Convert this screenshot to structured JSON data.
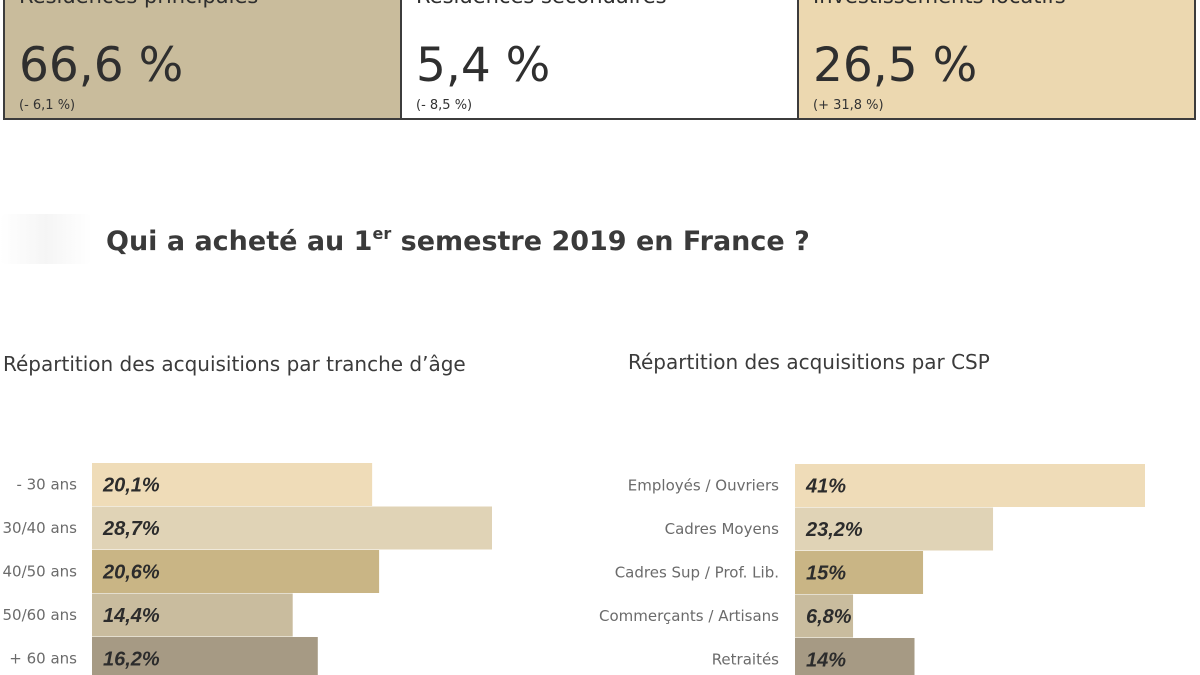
{
  "stats": [
    {
      "title": "Résidences principales",
      "value": "66,6 %",
      "change": "(- 6,1 %)",
      "color": "#c9bc9c"
    },
    {
      "title": "Résidences secondaires",
      "value": "5,4 %",
      "change": "(- 8,5 %)",
      "color": "#ffffff"
    },
    {
      "title": "Investissements locatifs",
      "value": "26,5 %",
      "change": "(+ 31,8 %)",
      "color": "#ecd8b0"
    }
  ],
  "heading": {
    "pre": "Qui a acheté au 1",
    "sup": "er",
    "post": " semestre 2019 en France ?"
  },
  "chart_data": [
    {
      "type": "bar",
      "orientation": "horizontal",
      "title": "Répartition des acquisitions par tranche d’âge",
      "categories": [
        "- 30 ans",
        "30/40 ans",
        "40/50 ans",
        "50/60 ans",
        "+ 60 ans"
      ],
      "values": [
        20.1,
        28.7,
        20.6,
        14.4,
        16.2
      ],
      "value_labels": [
        "20,1%",
        "28,7%",
        "20,6%",
        "14,4%",
        "16,2%"
      ],
      "colors": [
        "#efdcb8",
        "#e0d3b6",
        "#c9b585",
        "#c9bc9e",
        "#a69a84"
      ],
      "xlim": [
        0,
        28.7
      ],
      "grid": false,
      "legend": "none"
    },
    {
      "type": "bar",
      "orientation": "horizontal",
      "title": "Répartition des acquisitions par CSP",
      "categories": [
        "Employés / Ouvriers",
        "Cadres Moyens",
        "Cadres Sup / Prof. Lib.",
        "Commerçants / Artisans",
        "Retraités"
      ],
      "values": [
        41,
        23.2,
        15,
        6.8,
        14
      ],
      "value_labels": [
        "41%",
        "23,2%",
        "15%",
        "6,8%",
        "14%"
      ],
      "colors": [
        "#efdcb8",
        "#e0d3b6",
        "#c9b585",
        "#c9bc9e",
        "#a69a84"
      ],
      "xlim": [
        0,
        41
      ],
      "grid": false,
      "legend": "none"
    }
  ]
}
